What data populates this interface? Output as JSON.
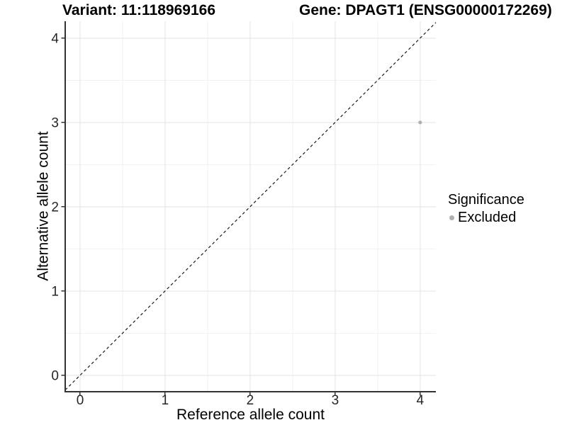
{
  "titles": {
    "left": "Variant: 11:118969166",
    "right": "Gene: DPAGT1 (ENSG00000172269)"
  },
  "chart_data": {
    "type": "scatter",
    "xlabel": "Reference allele count",
    "ylabel": "Alternative allele count",
    "x_ticks": [
      0,
      1,
      2,
      3,
      4
    ],
    "y_ticks": [
      0,
      1,
      2,
      3,
      4
    ],
    "x_minor_ticks": [
      0.5,
      1.5,
      2.5,
      3.5
    ],
    "y_minor_ticks": [
      0.5,
      1.5,
      2.5,
      3.5
    ],
    "xlim": [
      -0.175,
      4.185
    ],
    "ylim": [
      -0.195,
      4.2
    ],
    "grid": "major+minor",
    "reference_line": {
      "kind": "identity",
      "slope": 1,
      "intercept": 0,
      "style": "dashed",
      "color": "#1a1a1a"
    },
    "series": [
      {
        "name": "Excluded",
        "color": "#b0b0b0",
        "points": [
          {
            "x": 4,
            "y": 3
          }
        ]
      }
    ],
    "legend": {
      "title": "Significance",
      "position": "right",
      "items": [
        {
          "label": "Excluded",
          "color": "#b0b0b0"
        }
      ]
    },
    "colors": {
      "grid_major": "#e3e3e3",
      "grid_minor": "#f2f2f2",
      "axis_line": "#333333",
      "tick_text": "#262626",
      "background": "#ffffff"
    }
  }
}
